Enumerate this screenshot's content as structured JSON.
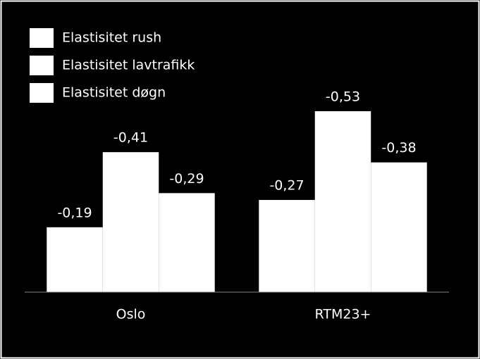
{
  "chart_data": {
    "type": "bar",
    "categories": [
      "Oslo",
      "RTM23+"
    ],
    "series": [
      {
        "name": "Elastisitet rush",
        "color": "#ffffff",
        "values": [
          -0.19,
          -0.27
        ],
        "value_labels": [
          "-0,19",
          "-0,27"
        ]
      },
      {
        "name": "Elastisitet lavtrafikk",
        "color": "#ffffff",
        "values": [
          -0.41,
          -0.53
        ],
        "value_labels": [
          "-0,41",
          "-0,53"
        ]
      },
      {
        "name": "Elastisitet døgn",
        "color": "#ffffff",
        "values": [
          -0.29,
          -0.38
        ],
        "value_labels": [
          "-0,29",
          "-0,38"
        ]
      }
    ],
    "ylim": [
      0,
      -0.8
    ],
    "legend": "top-left"
  }
}
